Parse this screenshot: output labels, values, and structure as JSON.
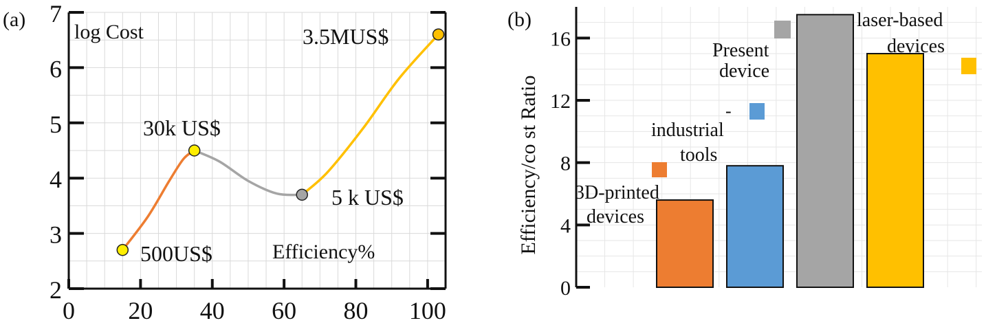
{
  "colors": {
    "orange": "#ED7D31",
    "gray": "#A5A5A5",
    "blue": "#5B9BD5",
    "yellow": "#FFC000",
    "marker_yellow": "#FFEE00",
    "grid": "#D9D9D9",
    "axis": "#111111"
  },
  "chart_data": [
    {
      "panel_label": "(a)",
      "type": "line",
      "title": "",
      "ylabel": "log Cost",
      "xlabel": "Efficiency%",
      "xlim": [
        0,
        105
      ],
      "ylim": [
        2,
        7
      ],
      "xticks": [
        0,
        20,
        40,
        60,
        80,
        100
      ],
      "yticks": [
        2,
        3,
        4,
        5,
        6,
        7
      ],
      "grid": true,
      "points": [
        {
          "x": 15,
          "y": 2.7,
          "label": "500US$",
          "color": "#FFEE00"
        },
        {
          "x": 35,
          "y": 4.5,
          "label": "30k US$",
          "color": "#FFEE00"
        },
        {
          "x": 65,
          "y": 3.7,
          "label": "5 k US$",
          "color": "#A5A5A5"
        },
        {
          "x": 103,
          "y": 6.6,
          "label": "3.5MUS$",
          "color": "#FFC000"
        }
      ],
      "series": [
        {
          "name": "orange-segment",
          "color": "#ED7D31",
          "x": [
            15,
            22,
            28,
            32,
            35
          ],
          "y": [
            2.7,
            3.3,
            3.95,
            4.35,
            4.5
          ]
        },
        {
          "name": "gray-segment",
          "color": "#A5A5A5",
          "x": [
            35,
            42,
            50,
            58,
            65
          ],
          "y": [
            4.5,
            4.3,
            3.95,
            3.72,
            3.7
          ]
        },
        {
          "name": "yellow-segment",
          "color": "#FFC000",
          "x": [
            65,
            72,
            82,
            92,
            103
          ],
          "y": [
            3.7,
            4.1,
            4.9,
            5.8,
            6.6
          ]
        }
      ]
    },
    {
      "panel_label": "(b)",
      "type": "bar",
      "title": "",
      "ylabel": "Efficiency/co st Ratio",
      "xlabel": "",
      "ylim": [
        0,
        18
      ],
      "yticks": [
        0,
        4,
        8,
        12,
        16
      ],
      "grid": true,
      "categories": [
        "3D-printed devices",
        "industrial tools",
        "Present device",
        "laser-based devices"
      ],
      "values": [
        5.6,
        7.8,
        17.5,
        15.0
      ],
      "colors": [
        "#ED7D31",
        "#5B9BD5",
        "#A5A5A5",
        "#FFC000"
      ],
      "annotations": [
        {
          "lines": [
            "3D-printed",
            "devices"
          ],
          "marker_color": "#ED7D31"
        },
        {
          "lines": [
            "industrial",
            "tools"
          ],
          "marker_color": "#5B9BD5",
          "dash": "-"
        },
        {
          "lines": [
            "Present",
            "device"
          ],
          "marker_color": "#A5A5A5"
        },
        {
          "lines": [
            "laser-based",
            "devices"
          ],
          "marker_color": "#FFC000"
        }
      ]
    }
  ]
}
